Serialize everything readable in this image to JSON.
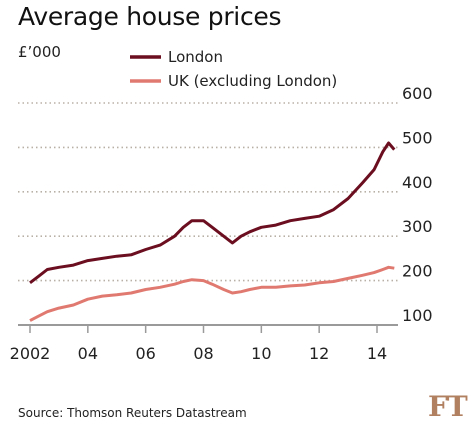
{
  "chart_data": {
    "type": "line",
    "title": "Average house prices",
    "unit_label": "£’000",
    "source": "Source: Thomson Reuters Datastream",
    "logo": "FT",
    "colors": {
      "London": "#6b0e1f",
      "UK (excluding London)": "#e07a70",
      "grid": "#b8b0a6",
      "axis": "#9a9a9a"
    },
    "grid": true,
    "legend_placement": "top-left",
    "ylim": [
      100,
      600
    ],
    "yticks": [
      100,
      200,
      300,
      400,
      500,
      600
    ],
    "ytick_labels": [
      "100",
      "200",
      "300",
      "400",
      "500",
      "600"
    ],
    "xlim": [
      2001.6,
      2014.9
    ],
    "xticks": [
      2002,
      2004,
      2006,
      2008,
      2010,
      2012,
      2014
    ],
    "xtick_labels": [
      "2002",
      "04",
      "06",
      "08",
      "10",
      "12",
      "14"
    ],
    "series": [
      {
        "name": "London",
        "x": [
          2002.0,
          2002.3,
          2002.6,
          2003.0,
          2003.5,
          2004.0,
          2004.5,
          2005.0,
          2005.5,
          2006.0,
          2006.5,
          2007.0,
          2007.3,
          2007.6,
          2008.0,
          2008.3,
          2008.7,
          2009.0,
          2009.3,
          2009.6,
          2010.0,
          2010.5,
          2011.0,
          2011.5,
          2012.0,
          2012.5,
          2013.0,
          2013.5,
          2013.9,
          2014.2,
          2014.4,
          2014.6
        ],
        "values": [
          195,
          210,
          225,
          230,
          235,
          245,
          250,
          255,
          258,
          270,
          280,
          300,
          320,
          335,
          335,
          320,
          300,
          285,
          300,
          310,
          320,
          325,
          335,
          340,
          345,
          360,
          385,
          420,
          450,
          490,
          510,
          495
        ]
      },
      {
        "name": "UK (excluding London)",
        "x": [
          2002.0,
          2002.3,
          2002.6,
          2003.0,
          2003.5,
          2004.0,
          2004.5,
          2005.0,
          2005.5,
          2006.0,
          2006.5,
          2007.0,
          2007.3,
          2007.6,
          2008.0,
          2008.3,
          2008.7,
          2009.0,
          2009.3,
          2009.6,
          2010.0,
          2010.5,
          2011.0,
          2011.5,
          2012.0,
          2012.5,
          2013.0,
          2013.5,
          2013.9,
          2014.2,
          2014.4,
          2014.6
        ],
        "values": [
          110,
          120,
          130,
          138,
          145,
          158,
          165,
          168,
          172,
          180,
          185,
          192,
          198,
          202,
          200,
          192,
          180,
          172,
          175,
          180,
          185,
          185,
          188,
          190,
          195,
          198,
          205,
          212,
          218,
          225,
          230,
          228
        ]
      }
    ]
  }
}
